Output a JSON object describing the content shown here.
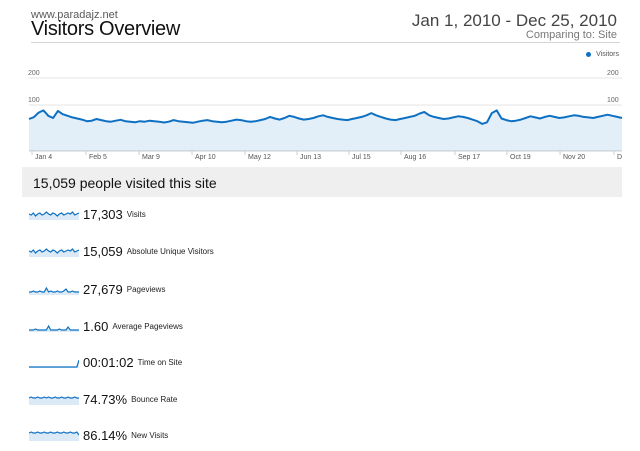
{
  "header": {
    "site": "www.paradajz.net",
    "title": "Visitors Overview",
    "date_range": "Jan 1, 2010 - Dec 25, 2010",
    "comparing": "Comparing to: Site"
  },
  "chart_data": {
    "type": "line",
    "legend": {
      "label": "Visitors",
      "position": "top-right"
    },
    "y_ticks": [
      "200",
      "100"
    ],
    "ylim": [
      0,
      200
    ],
    "x_labels": [
      "Jan 4",
      "Feb 5",
      "Mar 9",
      "Apr 10",
      "May 12",
      "Jun 13",
      "Jul 15",
      "Aug 16",
      "Sep 17",
      "Oct 19",
      "Nov 20",
      "D"
    ],
    "series": [
      {
        "name": "Visitors",
        "color": "#0e70c2",
        "values": [
          48,
          55,
          72,
          80,
          60,
          52,
          78,
          66,
          60,
          54,
          50,
          46,
          40,
          42,
          48,
          44,
          40,
          38,
          42,
          45,
          40,
          38,
          36,
          40,
          38,
          42,
          40,
          38,
          35,
          38,
          44,
          40,
          38,
          36,
          34,
          38,
          42,
          44,
          40,
          38,
          36,
          38,
          42,
          46,
          44,
          40,
          38,
          40,
          44,
          48,
          56,
          50,
          46,
          52,
          60,
          56,
          50,
          46,
          48,
          52,
          58,
          62,
          56,
          52,
          48,
          46,
          44,
          48,
          52,
          56,
          62,
          70,
          62,
          56,
          50,
          46,
          44,
          48,
          52,
          56,
          60,
          68,
          74,
          62,
          56,
          52,
          48,
          50,
          54,
          58,
          56,
          52,
          46,
          40,
          30,
          36,
          70,
          80,
          50,
          44,
          40,
          42,
          46,
          52,
          58,
          54,
          50,
          56,
          60,
          56,
          52,
          54,
          58,
          62,
          60,
          56,
          54,
          52,
          56,
          60,
          64,
          60,
          56,
          52
        ]
      }
    ]
  },
  "summary": {
    "text": "15,059 people visited this site"
  },
  "metrics": [
    {
      "value": "17,303",
      "label": "Visits"
    },
    {
      "value": "15,059",
      "label": "Absolute Unique Visitors"
    },
    {
      "value": "27,679",
      "label": "Pageviews"
    },
    {
      "value": "1.60",
      "label": "Average Pageviews"
    },
    {
      "value": "00:01:02",
      "label": "Time on Site"
    },
    {
      "value": "74.73%",
      "label": "Bounce Rate"
    },
    {
      "value": "86.14%",
      "label": "New Visits"
    }
  ],
  "colors": {
    "accent": "#0e70c2",
    "summary_bg": "#efefef"
  }
}
